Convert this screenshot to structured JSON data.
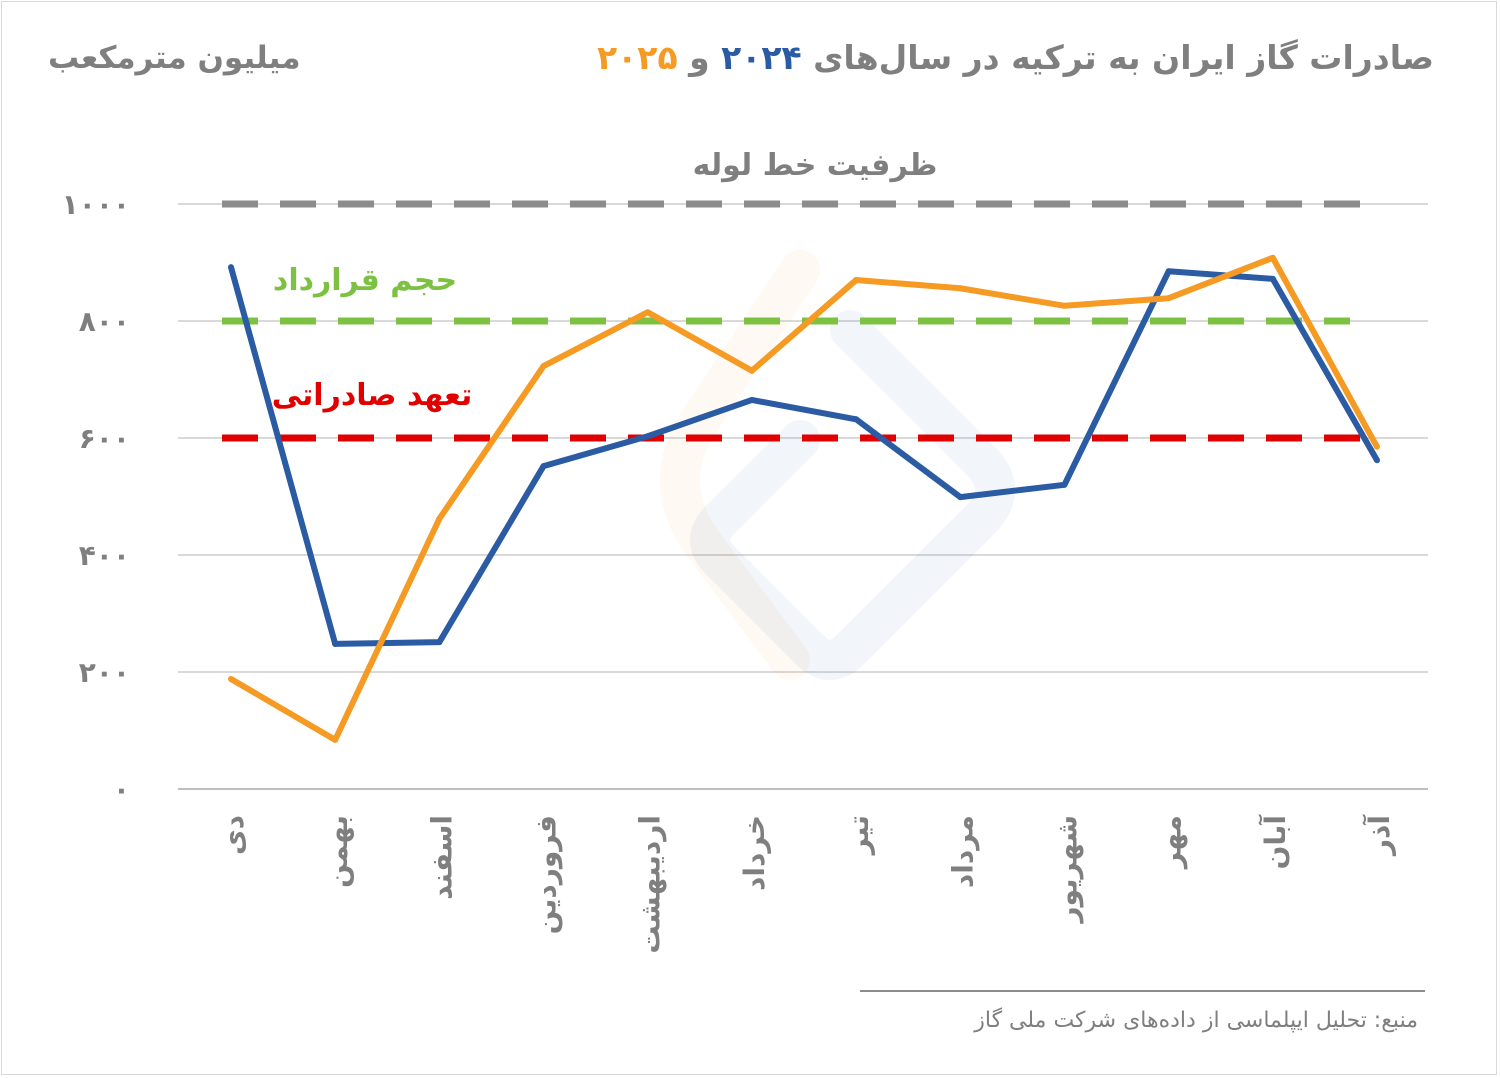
{
  "title": {
    "prefix": "صادرات گاز ایران به ترکیه در سال‌های ",
    "year1": "۲۰۲۴",
    "joiner": " و ",
    "year2": "۲۰۲۵"
  },
  "unit_label": "میلیون مترمکعب",
  "source": "منبع: تحلیل ایپلماسی از داده‌های شرکت ملی گاز",
  "colors": {
    "series_2024": "#2a5ba3",
    "series_2025": "#f59a23",
    "capacity": "#8c8c8c",
    "contract": "#7dc142",
    "commitment": "#e00000",
    "text": "#7f7f7f"
  },
  "chart_data": {
    "type": "line",
    "title": "صادرات گاز ایران به ترکیه در سال‌های ۲۰۲۴ و ۲۰۲۵",
    "ylabel": "میلیون مترمکعب",
    "ylim": [
      0,
      1000
    ],
    "yticks": [
      0,
      200,
      400,
      600,
      800,
      1000
    ],
    "ytick_labels": [
      "۰",
      "۲۰۰",
      "۴۰۰",
      "۶۰۰",
      "۸۰۰",
      "۱۰۰۰"
    ],
    "grid": true,
    "categories": [
      "دی",
      "بهمن",
      "اسفند",
      "فروردین",
      "اردیبهشت",
      "خرداد",
      "تیر",
      "مرداد",
      "شهریور",
      "مهر",
      "آبان",
      "آذر"
    ],
    "series": [
      {
        "name": "۲۰۲۴",
        "color": "#2a5ba3",
        "values": [
          892,
          248,
          251,
          552,
          603,
          665,
          632,
          499,
          520,
          885,
          872,
          562
        ]
      },
      {
        "name": "۲۰۲۵",
        "color": "#f59a23",
        "values": [
          188,
          84,
          462,
          723,
          815,
          715,
          870,
          856,
          826,
          839,
          908,
          585
        ]
      }
    ],
    "reference_lines": [
      {
        "label": "ظرفیت خط لوله",
        "value": 1000,
        "color": "#8c8c8c"
      },
      {
        "label": "حجم قرارداد",
        "value": 800,
        "color": "#7dc142"
      },
      {
        "label": "تعهد صادراتی",
        "value": 600,
        "color": "#e00000"
      }
    ]
  }
}
